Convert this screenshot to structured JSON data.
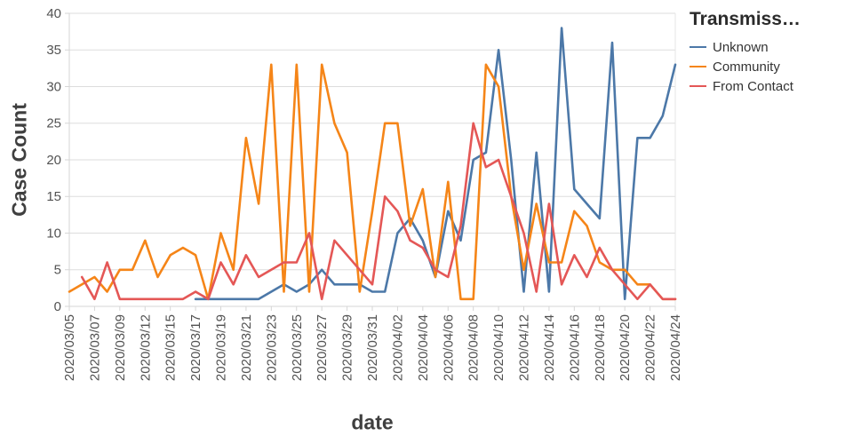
{
  "chart_data": {
    "type": "line",
    "x": [
      "2020/03/05",
      "2020/03/06",
      "2020/03/07",
      "2020/03/08",
      "2020/03/09",
      "2020/03/11",
      "2020/03/12",
      "2020/03/13",
      "2020/03/15",
      "2020/03/16",
      "2020/03/17",
      "2020/03/18",
      "2020/03/19",
      "2020/03/20",
      "2020/03/21",
      "2020/03/22",
      "2020/03/23",
      "2020/03/24",
      "2020/03/25",
      "2020/03/26",
      "2020/03/27",
      "2020/03/28",
      "2020/03/29",
      "2020/03/30",
      "2020/03/31",
      "2020/04/01",
      "2020/04/02",
      "2020/04/03",
      "2020/04/04",
      "2020/04/05",
      "2020/04/06",
      "2020/04/07",
      "2020/04/08",
      "2020/04/09",
      "2020/04/10",
      "2020/04/11",
      "2020/04/12",
      "2020/04/13",
      "2020/04/14",
      "2020/04/15",
      "2020/04/16",
      "2020/04/17",
      "2020/04/18",
      "2020/04/19",
      "2020/04/20",
      "2020/04/21",
      "2020/04/22",
      "2020/04/23",
      "2020/04/24"
    ],
    "series": [
      {
        "name": "Unknown",
        "color": "#4c78a8",
        "values": [
          null,
          null,
          null,
          null,
          null,
          null,
          null,
          null,
          null,
          null,
          1,
          1,
          1,
          1,
          1,
          1,
          2,
          3,
          2,
          3,
          5,
          3,
          3,
          3,
          2,
          2,
          10,
          12,
          9,
          4,
          13,
          9,
          20,
          21,
          35,
          20,
          2,
          21,
          2,
          38,
          16,
          14,
          12,
          36,
          1,
          23,
          23,
          26,
          33
        ]
      },
      {
        "name": "Community",
        "color": "#f58518",
        "values": [
          2,
          3,
          4,
          2,
          5,
          5,
          9,
          4,
          7,
          8,
          7,
          1,
          10,
          5,
          23,
          14,
          33,
          2,
          33,
          2,
          33,
          25,
          21,
          2,
          13,
          25,
          25,
          11,
          16,
          4,
          17,
          1,
          1,
          33,
          30,
          15,
          5,
          14,
          6,
          6,
          13,
          11,
          6,
          5,
          5,
          3,
          3,
          1,
          1
        ]
      },
      {
        "name": "From Contact",
        "color": "#e45756",
        "values": [
          null,
          4,
          1,
          6,
          1,
          1,
          1,
          1,
          1,
          1,
          2,
          1,
          6,
          3,
          7,
          4,
          5,
          6,
          6,
          10,
          1,
          9,
          7,
          5,
          3,
          15,
          13,
          9,
          8,
          5,
          4,
          11,
          25,
          19,
          20,
          15,
          10,
          2,
          14,
          3,
          7,
          4,
          8,
          5,
          3,
          1,
          3,
          1,
          1
        ]
      }
    ],
    "xlabel": "date",
    "ylabel": "Case Count",
    "ylim": [
      0,
      40
    ],
    "yticks": [
      0,
      5,
      10,
      15,
      20,
      25,
      30,
      35,
      40
    ],
    "x_tick_every": 2,
    "grid": "horizontal",
    "legend": {
      "title": "Transmiss…",
      "position": "top-right"
    }
  },
  "colors": {
    "grid": "#dddddd",
    "domain": "#d6d6d6",
    "tick_label": "#525252",
    "axis_title": "#3f3f3f",
    "legend_title": "#2b2b2b",
    "legend_label": "#333333",
    "background": "#ffffff"
  }
}
